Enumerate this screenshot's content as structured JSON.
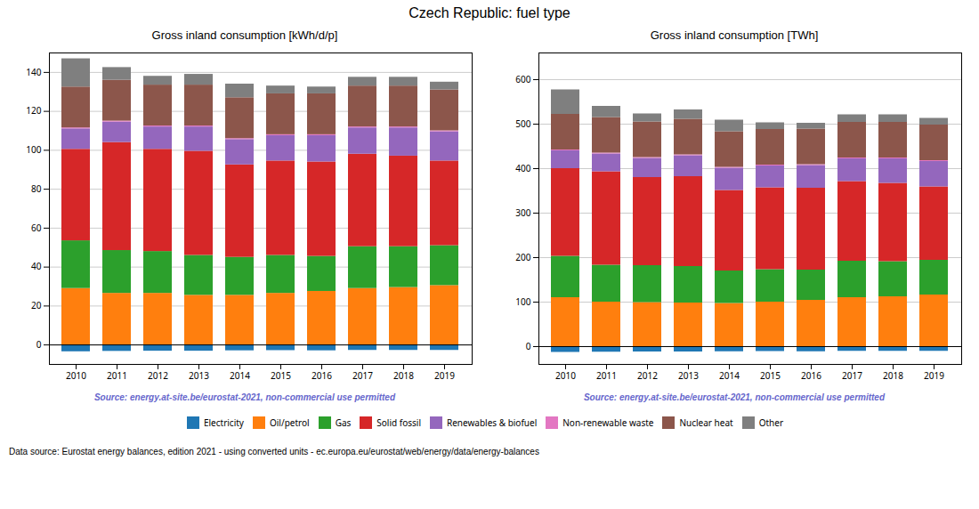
{
  "title": "Czech Republic: fuel type",
  "annotations": [
    "Data source: Eurostat energy balances, edition 2021 - using converted units - ec.europa.eu/eurostat/web/energy/data/energy-balances"
  ],
  "legend": "bottom",
  "chart_data": [
    {
      "type": "bar",
      "stacked": true,
      "grid": true,
      "title": "Gross inland consumption [kWh/d/p]",
      "annotations": [
        {
          "text": "Source: energy.at-site.be/eurostat-2021, non-commercial use permitted",
          "color": "#6666cc"
        }
      ],
      "categories": [
        2010,
        2011,
        2012,
        2013,
        2014,
        2015,
        2016,
        2017,
        2018,
        2019
      ],
      "ylim": [
        -10,
        150
      ],
      "yticks": [
        0,
        20,
        40,
        60,
        80,
        100,
        120,
        140
      ],
      "series": [
        {
          "name": "Electricity",
          "color": "#1f77b4",
          "values": [
            -3.5,
            -3.3,
            -3.2,
            -3.2,
            -3.0,
            -2.9,
            -3.0,
            -2.8,
            -2.8,
            -2.8
          ]
        },
        {
          "name": "Oil/petrol",
          "color": "#ff7f0e",
          "values": [
            29.0,
            26.5,
            26.5,
            25.5,
            25.5,
            26.5,
            27.5,
            29.0,
            29.5,
            30.5
          ]
        },
        {
          "name": "Gas",
          "color": "#2ca02c",
          "values": [
            24.5,
            22.0,
            21.5,
            20.5,
            19.5,
            19.5,
            18.0,
            21.5,
            21.0,
            20.5
          ]
        },
        {
          "name": "Solid fossil",
          "color": "#d62728",
          "values": [
            47.0,
            55.5,
            52.5,
            53.5,
            47.5,
            48.5,
            48.5,
            47.5,
            46.5,
            43.5
          ]
        },
        {
          "name": "Renewables & biofuel",
          "color": "#9467bd",
          "values": [
            10.5,
            10.5,
            11.5,
            12.5,
            13.0,
            13.0,
            13.5,
            13.5,
            14.5,
            15.0
          ]
        },
        {
          "name": "Non-renewable waste",
          "color": "#e377c2",
          "values": [
            0.5,
            0.5,
            0.5,
            0.5,
            0.5,
            0.5,
            0.5,
            0.5,
            0.5,
            0.5
          ]
        },
        {
          "name": "Nuclear heat",
          "color": "#8c564b",
          "values": [
            21.0,
            21.0,
            21.0,
            21.0,
            21.0,
            21.0,
            21.0,
            21.0,
            21.0,
            21.0
          ]
        },
        {
          "name": "Other",
          "color": "#7f7f7f",
          "values": [
            14.5,
            6.5,
            4.5,
            5.5,
            7.0,
            4.0,
            3.5,
            4.5,
            4.5,
            4.0
          ]
        }
      ]
    },
    {
      "type": "bar",
      "stacked": true,
      "grid": true,
      "title": "Gross inland consumption [TWh]",
      "annotations": [
        {
          "text": "Source: energy.at-site.be/eurostat-2021, non-commercial use permitted",
          "color": "#6666cc"
        }
      ],
      "categories": [
        2010,
        2011,
        2012,
        2013,
        2014,
        2015,
        2016,
        2017,
        2018,
        2019
      ],
      "ylim": [
        -40,
        660
      ],
      "yticks": [
        0,
        100,
        200,
        300,
        400,
        500,
        600
      ],
      "series": [
        {
          "name": "Electricity",
          "color": "#1f77b4",
          "values": [
            -13,
            -12.5,
            -12,
            -12,
            -11.5,
            -11,
            -11.5,
            -10.5,
            -10.5,
            -10.5
          ]
        },
        {
          "name": "Oil/petrol",
          "color": "#ff7f0e",
          "values": [
            110,
            100,
            99,
            98,
            97,
            100,
            104,
            110,
            112,
            116
          ]
        },
        {
          "name": "Gas",
          "color": "#2ca02c",
          "values": [
            93,
            83,
            83,
            82,
            73,
            73,
            68,
            82,
            79,
            78
          ]
        },
        {
          "name": "Solid fossil",
          "color": "#d62728",
          "values": [
            197,
            210,
            198,
            202,
            181,
            184,
            184,
            179,
            176,
            165
          ]
        },
        {
          "name": "Renewables & biofuel",
          "color": "#9467bd",
          "values": [
            40,
            40,
            43,
            47,
            50,
            49,
            51,
            51,
            55,
            57
          ]
        },
        {
          "name": "Non-renewable waste",
          "color": "#e377c2",
          "values": [
            2,
            2,
            2,
            2,
            2,
            2,
            2,
            2,
            2,
            2
          ]
        },
        {
          "name": "Nuclear heat",
          "color": "#8c564b",
          "values": [
            80,
            80,
            80,
            80,
            80,
            80,
            80,
            80,
            80,
            80
          ]
        },
        {
          "name": "Other",
          "color": "#7f7f7f",
          "values": [
            55,
            25,
            18,
            21,
            26,
            15,
            13,
            17,
            17,
            15
          ]
        }
      ]
    }
  ]
}
